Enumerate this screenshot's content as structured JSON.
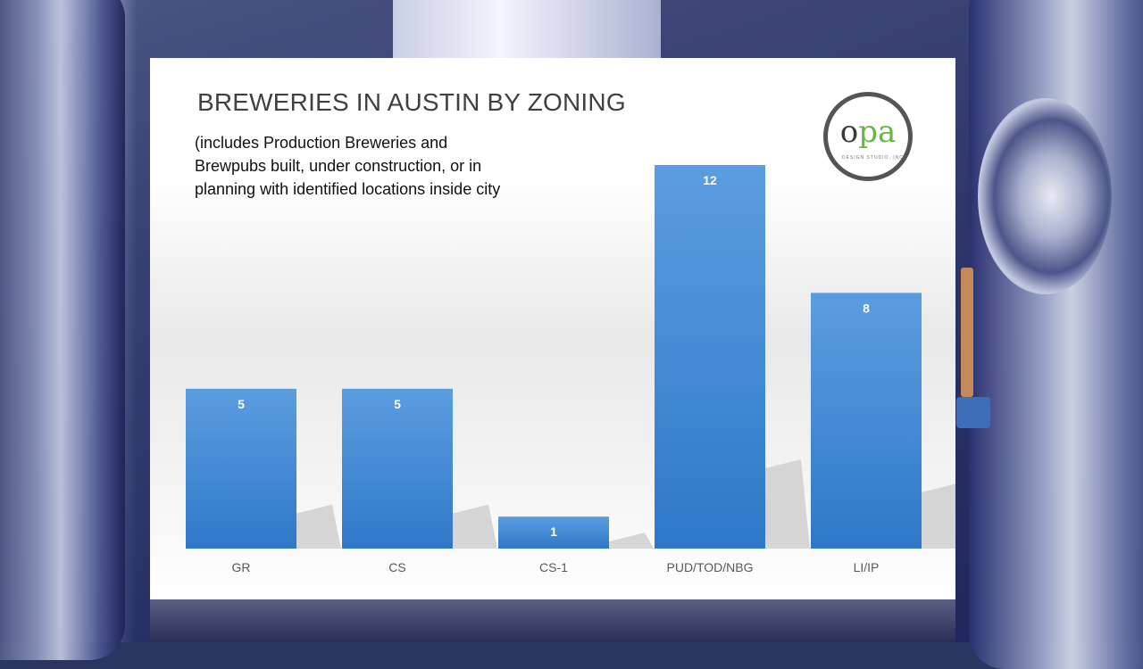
{
  "chart_data": {
    "type": "bar",
    "title": "BREWERIES IN AUSTIN BY ZONING",
    "subtitle_lines": [
      "(includes Production Breweries  and",
      "Brewpubs built, under construction, or in",
      "planning with identified locations inside city"
    ],
    "categories": [
      "GR",
      "CS",
      "CS-1",
      "PUD/TOD/NBG",
      "LI/IP"
    ],
    "values": [
      5,
      5,
      1,
      12,
      8
    ],
    "ylim": [
      0,
      12
    ],
    "grid": false,
    "legend": "none",
    "data_labels": true,
    "bar_color": "#4a8ed6"
  },
  "logo": {
    "o": "o",
    "pa": "pa",
    "small": "DESIGN STUDIO, INC."
  }
}
